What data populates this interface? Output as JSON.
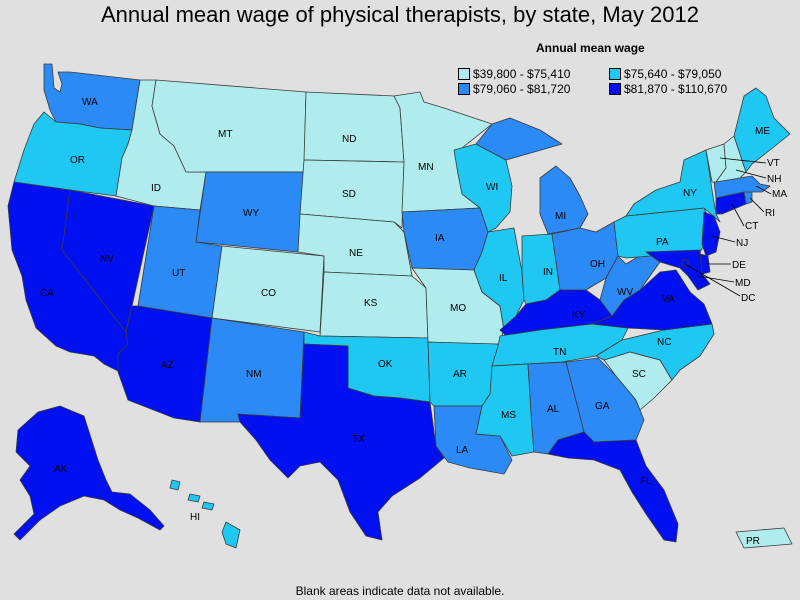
{
  "title": "Annual mean wage of physical therapists, by state, May 2012",
  "legend": {
    "title": "Annual mean wage",
    "items": [
      {
        "label": "$39,800 - $75,410",
        "color": "#b0eced"
      },
      {
        "label": "$75,640 - $79,050",
        "color": "#1ec8f2"
      },
      {
        "label": "$79,060 - $81,720",
        "color": "#2b8af5"
      },
      {
        "label": "$81,870 - $110,670",
        "color": "#0010f0"
      }
    ]
  },
  "footnote": "Blank areas indicate data not available.",
  "states": {
    "WA": {
      "label": "WA",
      "bin": 2
    },
    "OR": {
      "label": "OR",
      "bin": 1
    },
    "CA": {
      "label": "CA",
      "bin": 3
    },
    "NV": {
      "label": "NV",
      "bin": 3
    },
    "ID": {
      "label": "ID",
      "bin": 0
    },
    "MT": {
      "label": "MT",
      "bin": 0
    },
    "WY": {
      "label": "WY",
      "bin": 2
    },
    "UT": {
      "label": "UT",
      "bin": 2
    },
    "AZ": {
      "label": "AZ",
      "bin": 3
    },
    "CO": {
      "label": "CO",
      "bin": 0
    },
    "NM": {
      "label": "NM",
      "bin": 2
    },
    "ND": {
      "label": "ND",
      "bin": 0
    },
    "SD": {
      "label": "SD",
      "bin": 0
    },
    "NE": {
      "label": "NE",
      "bin": 0
    },
    "KS": {
      "label": "KS",
      "bin": 0
    },
    "OK": {
      "label": "OK",
      "bin": 1
    },
    "TX": {
      "label": "TX",
      "bin": 3
    },
    "MN": {
      "label": "MN",
      "bin": 0
    },
    "IA": {
      "label": "IA",
      "bin": 2
    },
    "MO": {
      "label": "MO",
      "bin": 0
    },
    "AR": {
      "label": "AR",
      "bin": 1
    },
    "LA": {
      "label": "LA",
      "bin": 2
    },
    "WI": {
      "label": "WI",
      "bin": 1
    },
    "IL": {
      "label": "IL",
      "bin": 1
    },
    "MI": {
      "label": "MI",
      "bin": 2
    },
    "IN": {
      "label": "IN",
      "bin": 1
    },
    "OH": {
      "label": "OH",
      "bin": 2
    },
    "KY": {
      "label": "KY",
      "bin": 3
    },
    "TN": {
      "label": "TN",
      "bin": 1
    },
    "MS": {
      "label": "MS",
      "bin": 1
    },
    "AL": {
      "label": "AL",
      "bin": 2
    },
    "GA": {
      "label": "GA",
      "bin": 2
    },
    "FL": {
      "label": "FL",
      "bin": 3
    },
    "SC": {
      "label": "SC",
      "bin": 0
    },
    "NC": {
      "label": "NC",
      "bin": 1
    },
    "VA": {
      "label": "VA",
      "bin": 3
    },
    "WV": {
      "label": "WV",
      "bin": 2
    },
    "PA": {
      "label": "PA",
      "bin": 1
    },
    "NY": {
      "label": "NY",
      "bin": 1
    },
    "NJ": {
      "label": "NJ",
      "bin": 3
    },
    "DE": {
      "label": "DE",
      "bin": 3
    },
    "MD": {
      "label": "MD",
      "bin": 3
    },
    "DC": {
      "label": "DC",
      "bin": 3
    },
    "CT": {
      "label": "CT",
      "bin": 3
    },
    "RI": {
      "label": "RI",
      "bin": 2
    },
    "MA": {
      "label": "MA",
      "bin": 2
    },
    "VT": {
      "label": "VT",
      "bin": 0
    },
    "NH": {
      "label": "NH",
      "bin": 0
    },
    "ME": {
      "label": "ME",
      "bin": 1
    },
    "AK": {
      "label": "AK",
      "bin": 3
    },
    "HI": {
      "label": "HI",
      "bin": 1
    },
    "PR": {
      "label": "PR",
      "bin": 0
    }
  }
}
